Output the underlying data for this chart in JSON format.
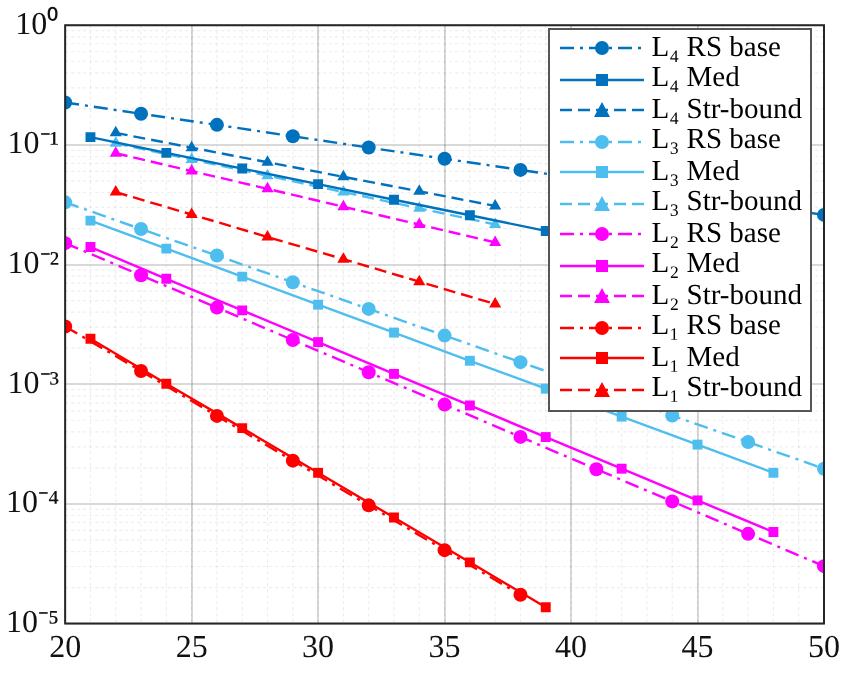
{
  "chart_data": {
    "type": "line",
    "xlim": [
      20,
      50
    ],
    "ylim": [
      1e-05,
      1
    ],
    "xticks": [
      20,
      25,
      30,
      35,
      40,
      45,
      50
    ],
    "yticks": [
      {
        "value": 1e-05,
        "label": "10⁻⁵"
      },
      {
        "value": 0.0001,
        "label": "10⁻⁴"
      },
      {
        "value": 0.001,
        "label": "10⁻³"
      },
      {
        "value": 0.01,
        "label": "10⁻²"
      },
      {
        "value": 0.1,
        "label": "10⁻¹"
      },
      {
        "value": 1,
        "label": "10⁰"
      }
    ],
    "log": "y",
    "grid": true,
    "legend": "top right",
    "series": [
      {
        "name": "L₄ RS base",
        "color": "#0072bd",
        "marker": "circle",
        "line_style": "dashdot",
        "x": [
          20,
          23,
          26,
          29,
          32,
          35,
          38,
          41,
          44,
          47,
          50
        ],
        "values": [
          0.226,
          0.182,
          0.147,
          0.118,
          0.095,
          0.0766,
          0.0618,
          null,
          null,
          null,
          0.026
        ]
      },
      {
        "name": "L₄ Med",
        "color": "#0072bd",
        "marker": "square",
        "line_style": "solid",
        "x": [
          21,
          24,
          27,
          30,
          33,
          36,
          39
        ],
        "values": [
          0.116,
          0.0858,
          0.0634,
          0.047,
          0.0348,
          0.0258,
          0.0191
        ]
      },
      {
        "name": "L₄ Str-bound",
        "color": "#0072bd",
        "marker": "triangle",
        "line_style": "dashed",
        "x": [
          22,
          25,
          28,
          31,
          34,
          37
        ],
        "values": [
          0.126,
          0.0948,
          0.0716,
          0.0541,
          0.0409,
          0.0309
        ]
      },
      {
        "name": "L₃ RS base",
        "color": "#4dbeee",
        "marker": "circle",
        "line_style": "dashdot",
        "x": [
          20,
          23,
          26,
          29,
          32,
          35,
          38,
          41,
          44,
          47,
          50
        ],
        "values": [
          0.0331,
          0.0198,
          0.0119,
          0.00711,
          0.00426,
          0.00255,
          0.00153,
          null,
          0.000548,
          0.000329,
          0.000197
        ]
      },
      {
        "name": "L₃ Med",
        "color": "#4dbeee",
        "marker": "square",
        "line_style": "solid",
        "x": [
          21,
          24,
          27,
          30,
          33,
          36,
          39,
          42,
          45,
          48
        ],
        "values": [
          0.0233,
          0.0136,
          0.00793,
          0.00462,
          0.0027,
          0.00157,
          0.000918,
          0.000536,
          0.000313,
          0.000182
        ]
      },
      {
        "name": "L₃ Str-bound",
        "color": "#4dbeee",
        "marker": "triangle",
        "line_style": "dashed",
        "x": [
          22,
          25,
          28,
          31,
          34,
          37
        ],
        "values": [
          0.103,
          0.0755,
          0.0552,
          0.0404,
          0.0295,
          0.0216
        ]
      },
      {
        "name": "L₂ RS base",
        "color": "#ff00ff",
        "marker": "circle",
        "line_style": "dashdot",
        "x": [
          20,
          23,
          26,
          29,
          32,
          35,
          38,
          41,
          44,
          47,
          50
        ],
        "values": [
          0.0151,
          0.00813,
          0.00437,
          0.00234,
          0.00126,
          0.000676,
          0.000363,
          0.000195,
          0.000105,
          5.62e-05,
          3.02e-05
        ]
      },
      {
        "name": "L₂ Med",
        "color": "#ff00ff",
        "marker": "square",
        "line_style": "solid",
        "x": [
          21,
          24,
          27,
          30,
          33,
          36,
          39,
          42,
          45,
          48
        ],
        "values": [
          0.014,
          0.0076,
          0.00414,
          0.00225,
          0.00122,
          0.000665,
          0.000362,
          0.000197,
          0.000107,
          5.82e-05
        ]
      },
      {
        "name": "L₂ Str-bound",
        "color": "#ff00ff",
        "marker": "triangle",
        "line_style": "dashed",
        "x": [
          22,
          25,
          28,
          31,
          34,
          37
        ],
        "values": [
          0.0851,
          0.0604,
          0.0429,
          0.0304,
          0.0216,
          0.0153
        ]
      },
      {
        "name": "L₁ RS base",
        "color": "#ff0000",
        "marker": "circle",
        "line_style": "dashdot",
        "x": [
          20,
          23,
          26,
          29,
          32,
          35,
          38
        ],
        "values": [
          0.00304,
          0.00129,
          0.000544,
          0.00023,
          9.73e-05,
          4.11e-05,
          1.74e-05
        ]
      },
      {
        "name": "L₁ Med",
        "color": "#ff0000",
        "marker": "square",
        "line_style": "solid",
        "x": [
          21,
          24,
          27,
          30,
          33,
          36,
          39
        ],
        "values": [
          0.0024,
          0.00101,
          0.00043,
          0.000182,
          7.69e-05,
          3.25e-05,
          1.37e-05
        ]
      },
      {
        "name": "L₁ Str-bound",
        "color": "#ff0000",
        "marker": "triangle",
        "line_style": "dashed",
        "x": [
          22,
          25,
          28,
          31,
          34,
          37
        ],
        "values": [
          0.0403,
          0.0262,
          0.017,
          0.0111,
          0.00719,
          0.00468
        ]
      }
    ]
  }
}
